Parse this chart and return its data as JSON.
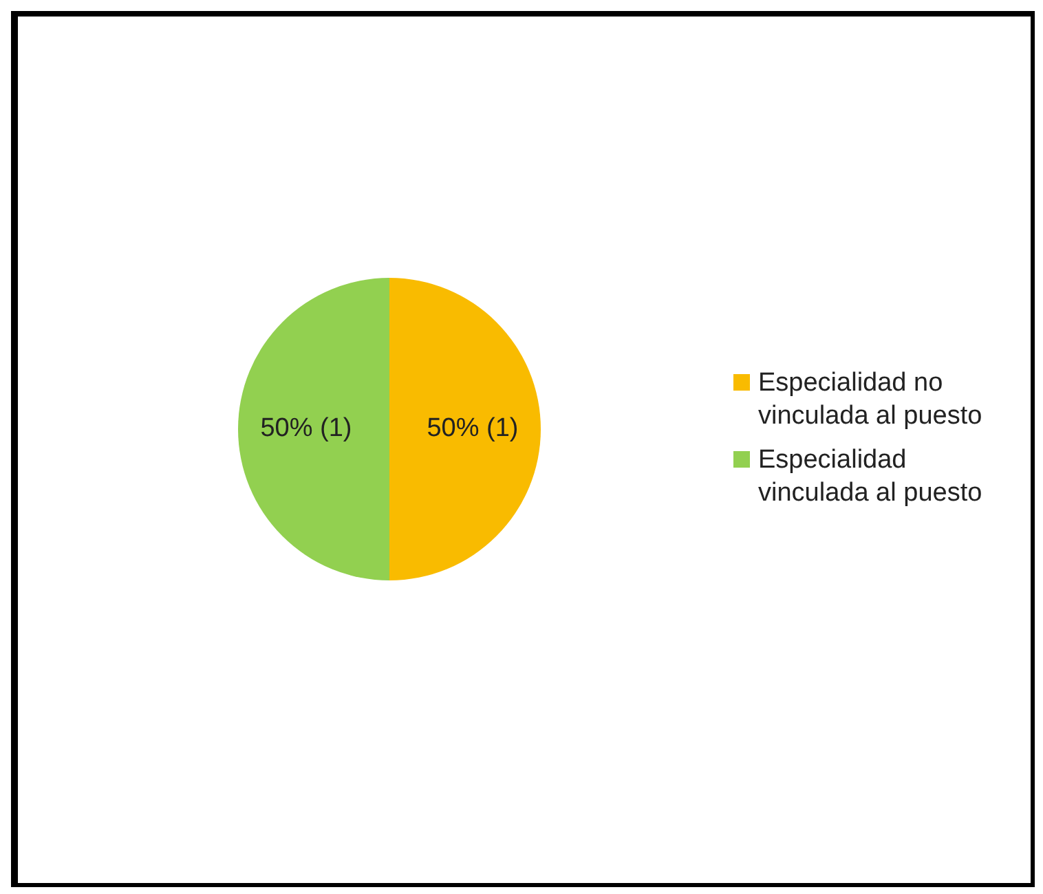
{
  "chart_data": {
    "type": "pie",
    "categories": [
      "Especialidad no vinculada al puesto",
      "Especialidad vinculada al puesto"
    ],
    "values": [
      50,
      50
    ],
    "colors": [
      "#f9bb00",
      "#92d050"
    ],
    "value_labels": [
      "50% (1)",
      "50% (1)"
    ],
    "legend": "right"
  }
}
